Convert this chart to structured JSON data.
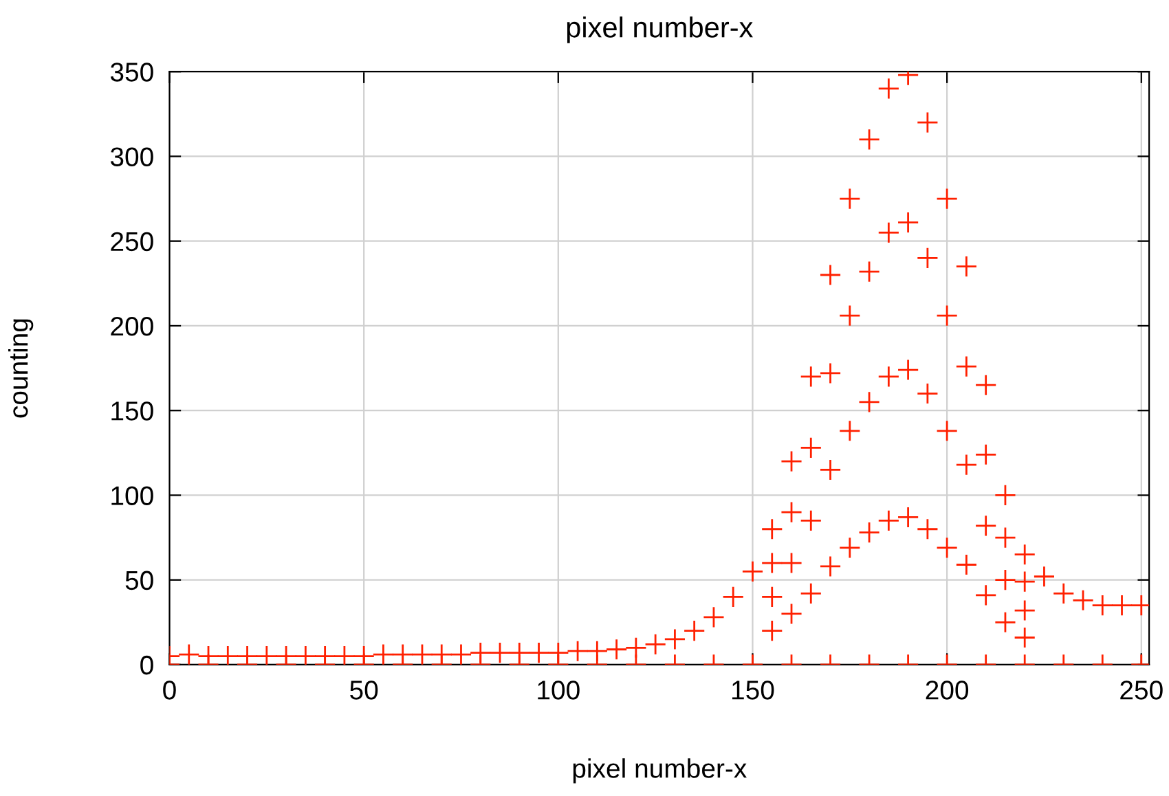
{
  "chart_data": {
    "type": "scatter",
    "title": "pixel number-x",
    "xlabel": "pixel number-x",
    "ylabel": "counting",
    "xlim": [
      0,
      252
    ],
    "ylim": [
      0,
      350
    ],
    "xticks": [
      0,
      50,
      100,
      150,
      200,
      250
    ],
    "yticks": [
      0,
      50,
      100,
      150,
      200,
      250,
      300,
      350
    ],
    "grid": true,
    "marker": "cross",
    "series": [
      {
        "color": "#ff2000",
        "x": [
          0,
          5,
          10,
          15,
          20,
          25,
          30,
          35,
          40,
          45,
          50,
          55,
          60,
          65,
          70,
          75,
          80,
          85,
          90,
          95,
          100,
          105,
          110,
          115,
          120,
          125,
          130,
          135,
          140,
          145,
          150,
          155,
          160,
          165,
          170,
          175,
          180,
          185,
          190,
          195,
          200,
          205,
          210,
          215,
          220,
          225,
          230,
          235,
          240,
          245,
          250,
          155,
          155,
          155,
          160,
          160,
          160,
          165,
          165,
          165,
          170,
          170,
          170,
          175,
          175,
          175,
          180,
          180,
          180,
          185,
          185,
          185,
          190,
          190,
          190,
          195,
          195,
          195,
          200,
          200,
          200,
          205,
          205,
          205,
          210,
          210,
          210,
          215,
          215,
          215,
          220,
          220,
          220,
          0,
          10,
          20,
          30,
          40,
          50,
          60,
          70,
          80,
          90,
          100,
          110,
          120,
          130,
          140,
          150,
          160,
          170,
          180,
          190,
          200,
          210,
          220,
          230,
          240,
          250
        ],
        "values": [
          5,
          6,
          5,
          5,
          5,
          5,
          5,
          5,
          5,
          5,
          5,
          6,
          6,
          6,
          6,
          6,
          7,
          7,
          7,
          7,
          7,
          8,
          8,
          9,
          10,
          12,
          15,
          20,
          28,
          40,
          55,
          80,
          120,
          170,
          230,
          275,
          310,
          340,
          348,
          320,
          275,
          235,
          165,
          100,
          65,
          52,
          42,
          38,
          35,
          35,
          35,
          20,
          40,
          60,
          30,
          60,
          90,
          42,
          85,
          128,
          58,
          115,
          172,
          69,
          138,
          206,
          78,
          155,
          232,
          85,
          170,
          255,
          87,
          174,
          261,
          80,
          160,
          240,
          69,
          138,
          206,
          59,
          118,
          176,
          41,
          82,
          124,
          25,
          50,
          75,
          16,
          32,
          49,
          0,
          0,
          0,
          0,
          0,
          0,
          0,
          0,
          0,
          0,
          0,
          0,
          0,
          0,
          0,
          0,
          0,
          0,
          0,
          0,
          0,
          0,
          0,
          0,
          0,
          0
        ]
      }
    ]
  }
}
